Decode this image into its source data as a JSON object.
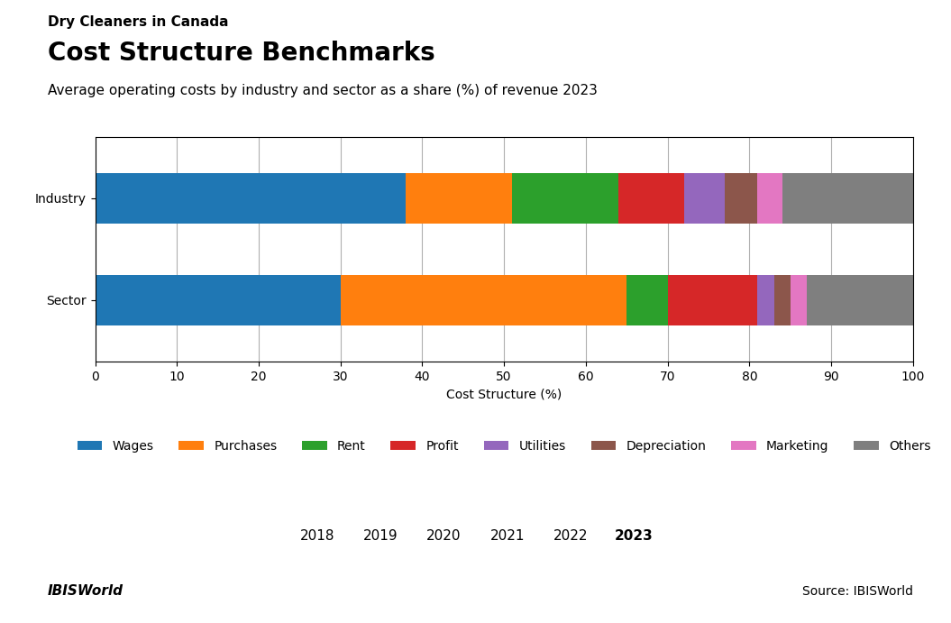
{
  "chart_data": {
    "type": "bar",
    "orientation": "horizontal",
    "stacked": true,
    "title": "Cost Structure Benchmarks",
    "subtitle": "Average operating costs by industry and sector as a share (%) of revenue 2023",
    "xlabel": "Cost Structure (%)",
    "categories": [
      "Sector",
      "Industry"
    ],
    "series": [
      {
        "name": "Wages",
        "values": [
          30.0,
          38.0
        ]
      },
      {
        "name": "Purchases",
        "values": [
          35.0,
          13.0
        ]
      },
      {
        "name": "Rent",
        "values": [
          5.0,
          13.0
        ]
      },
      {
        "name": "Profit",
        "values": [
          11.0,
          8.0
        ]
      },
      {
        "name": "Utilities",
        "values": [
          2.0,
          5.0
        ]
      },
      {
        "name": "Depreciation",
        "values": [
          2.0,
          4.0
        ]
      },
      {
        "name": "Marketing",
        "values": [
          2.0,
          3.0
        ]
      },
      {
        "name": "Others",
        "values": [
          13.0,
          16.0
        ]
      }
    ],
    "xlim": [
      0,
      100
    ],
    "xticks": [
      0,
      10,
      20,
      30,
      40,
      50,
      60,
      70,
      80,
      90,
      100
    ],
    "grid": true,
    "legend": "upper center",
    "annotations": [
      "Dry Cleaners in Canada",
      "2018",
      "2019",
      "2020",
      "2021",
      "2022",
      "2023",
      "IBISWorld",
      "Source: IBISWorld"
    ]
  }
}
